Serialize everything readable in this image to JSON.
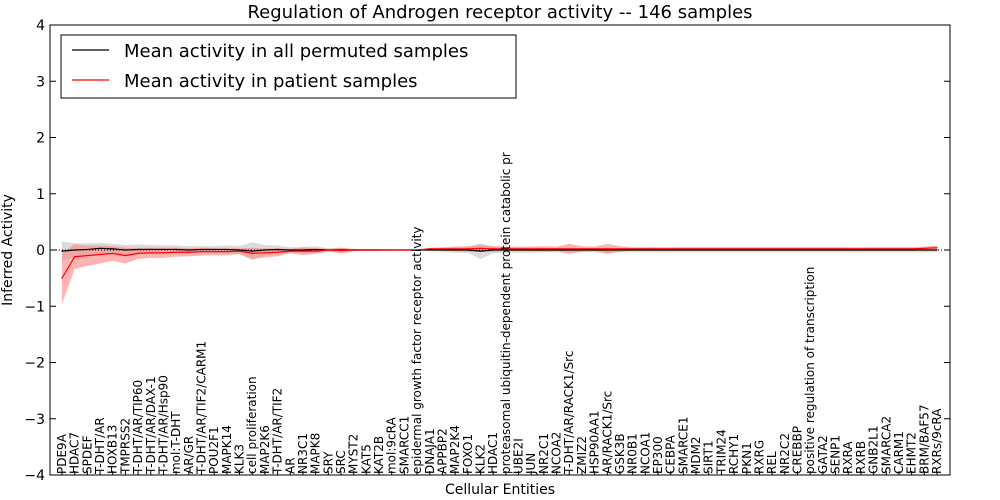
{
  "chart_data": {
    "type": "line",
    "title": "Regulation of Androgen receptor activity -- 146 samples",
    "xlabel": "Cellular Entities",
    "ylabel": "Inferred Activity",
    "ylim": [
      -4,
      4
    ],
    "yticks": [
      -4,
      -3,
      -2,
      -1,
      0,
      1,
      2,
      3,
      4
    ],
    "legend_position": "top-left",
    "categories": [
      "PDE9A",
      "HDAC7",
      "SPDEF",
      "T-DHT/AR",
      "HOXB13",
      "TMPRSS2",
      "T-DHT/AR/TIP60",
      "T-DHT/AR/DAX-1",
      "T-DHT/AR/Hsp90",
      "mol:T-DHT",
      "AR/GR",
      "T-DHT/AR/TIF2/CARM1",
      "POU2F1",
      "MAPK14",
      "KLK3",
      "cell proliferation",
      "MAP2K6",
      "T-DHT/AR/TIF2",
      "AR",
      "NR3C1",
      "MAPK8",
      "SRY",
      "SRC",
      "MYST2",
      "KAT5",
      "KAT2B",
      "mol:9cRA",
      "SMARCC1",
      "epidermal growth factor receptor activity",
      "DNAJA1",
      "APPBP2",
      "MAP2K4",
      "FOXO1",
      "KLK2",
      "HDAC1",
      "proteasomal ubiquitin-dependent protein catabolic pr",
      "UBE2I",
      "JUN",
      "NR2C1",
      "NCOA2",
      "T-DHT/AR/RACK1/Src",
      "ZMIZ2",
      "HSP90AA1",
      "AR/RACK1/Src",
      "GSK3B",
      "NR0B1",
      "NCOA1",
      "EP300",
      "CEBPA",
      "SMARCE1",
      "MDM2",
      "SIRT1",
      "TRIM24",
      "RCHY1",
      "PKN1",
      "RXRG",
      "REL",
      "NR2C2",
      "CREBBP",
      "positive regulation of transcription",
      "GATA2",
      "SENP1",
      "RXRA",
      "RXRB",
      "GNB2L1",
      "SMARCA2",
      "CARM1",
      "EHMT2",
      "BRM/BAF57",
      "RXRs/9cRA"
    ],
    "series": [
      {
        "name": "Mean activity in all permuted samples",
        "color": "#000000",
        "band_color": "#b0b0b0",
        "values": [
          -0.02,
          0.0,
          0.01,
          0.03,
          0.02,
          0.0,
          0.01,
          0.01,
          0.01,
          0.01,
          0.0,
          0.01,
          0.01,
          0.01,
          0.0,
          -0.02,
          0.0,
          0.01,
          0.0,
          0.0,
          0.01,
          0.0,
          0.0,
          0.0,
          0.0,
          0.0,
          0.0,
          0.0,
          0.0,
          0.0,
          0.0,
          0.0,
          0.0,
          -0.02,
          0.0,
          0.0,
          0.0,
          0.0,
          0.0,
          0.0,
          0.0,
          0.0,
          0.0,
          0.0,
          0.0,
          0.0,
          0.0,
          0.0,
          0.0,
          0.0,
          0.0,
          0.0,
          0.0,
          0.0,
          0.0,
          0.0,
          0.0,
          0.0,
          0.0,
          0.0,
          0.0,
          0.0,
          0.0,
          0.0,
          0.0,
          0.0,
          0.0,
          0.0,
          0.0,
          0.0
        ],
        "band": [
          0.17,
          0.12,
          0.11,
          0.1,
          0.09,
          0.09,
          0.09,
          0.08,
          0.07,
          0.07,
          0.07,
          0.06,
          0.06,
          0.07,
          0.07,
          0.16,
          0.09,
          0.07,
          0.05,
          0.05,
          0.06,
          0.03,
          0.04,
          0.02,
          0.02,
          0.02,
          0.01,
          0.01,
          0.0,
          0.02,
          0.03,
          0.05,
          0.05,
          0.14,
          0.06,
          0.05,
          0.05,
          0.05,
          0.04,
          0.04,
          0.04,
          0.04,
          0.04,
          0.05,
          0.04,
          0.04,
          0.04,
          0.04,
          0.04,
          0.04,
          0.04,
          0.04,
          0.04,
          0.04,
          0.04,
          0.04,
          0.04,
          0.04,
          0.04,
          0.04,
          0.04,
          0.04,
          0.04,
          0.04,
          0.04,
          0.04,
          0.04,
          0.04,
          0.04,
          0.04
        ]
      },
      {
        "name": "Mean activity in patient samples",
        "color": "#ff0000",
        "band_color": "#ff8080",
        "values": [
          -0.5,
          -0.12,
          -0.1,
          -0.08,
          -0.06,
          -0.1,
          -0.06,
          -0.05,
          -0.05,
          -0.04,
          -0.04,
          -0.03,
          -0.03,
          -0.03,
          -0.02,
          -0.06,
          -0.05,
          -0.04,
          -0.02,
          -0.02,
          -0.02,
          0.0,
          -0.01,
          0.0,
          0.0,
          0.0,
          0.0,
          0.0,
          0.0,
          0.02,
          0.02,
          0.02,
          0.02,
          0.03,
          0.02,
          0.02,
          0.02,
          0.02,
          0.02,
          0.02,
          0.02,
          0.02,
          0.02,
          0.02,
          0.02,
          0.02,
          0.02,
          0.02,
          0.02,
          0.02,
          0.02,
          0.02,
          0.02,
          0.02,
          0.02,
          0.02,
          0.02,
          0.02,
          0.02,
          0.02,
          0.02,
          0.02,
          0.02,
          0.02,
          0.02,
          0.02,
          0.02,
          0.02,
          0.03,
          0.04
        ],
        "band": [
          0.45,
          0.22,
          0.18,
          0.16,
          0.13,
          0.14,
          0.1,
          0.09,
          0.09,
          0.08,
          0.07,
          0.07,
          0.06,
          0.06,
          0.05,
          0.1,
          0.08,
          0.07,
          0.04,
          0.07,
          0.05,
          0.02,
          0.05,
          0.02,
          0.01,
          0.01,
          0.0,
          0.0,
          0.0,
          0.02,
          0.03,
          0.04,
          0.05,
          0.06,
          0.05,
          0.04,
          0.04,
          0.04,
          0.05,
          0.04,
          0.09,
          0.05,
          0.04,
          0.09,
          0.05,
          0.03,
          0.03,
          0.03,
          0.03,
          0.03,
          0.03,
          0.03,
          0.03,
          0.03,
          0.03,
          0.03,
          0.03,
          0.03,
          0.03,
          0.03,
          0.03,
          0.03,
          0.03,
          0.03,
          0.03,
          0.03,
          0.03,
          0.03,
          0.03,
          0.04
        ]
      }
    ]
  }
}
